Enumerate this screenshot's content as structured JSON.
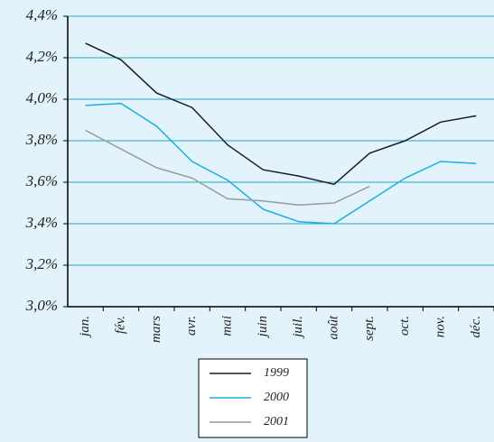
{
  "chart_data": {
    "type": "line",
    "categories": [
      "jan.",
      "fév.",
      "mars",
      "avr.",
      "mai",
      "juin",
      "juil.",
      "août",
      "sept.",
      "oct.",
      "nov.",
      "déc."
    ],
    "series": [
      {
        "name": "1999",
        "color": "#1c1c2a",
        "values": [
          4.27,
          4.19,
          4.03,
          3.96,
          3.78,
          3.66,
          3.63,
          3.59,
          3.74,
          3.8,
          3.89,
          3.92
        ]
      },
      {
        "name": "2000",
        "color": "#18aee6",
        "values": [
          3.97,
          3.98,
          3.87,
          3.7,
          3.61,
          3.47,
          3.41,
          3.4,
          3.51,
          3.62,
          3.7,
          3.69
        ]
      },
      {
        "name": "2001",
        "color": "#9a9a9a",
        "values": [
          3.85,
          3.76,
          3.67,
          3.62,
          3.52,
          3.51,
          3.49,
          3.5,
          3.58,
          null,
          null,
          null
        ]
      }
    ],
    "ylim": [
      3.0,
      4.4
    ],
    "yticks": [
      {
        "value": 3.0,
        "label": "3,0%"
      },
      {
        "value": 3.2,
        "label": "3,2%"
      },
      {
        "value": 3.4,
        "label": "3,4%"
      },
      {
        "value": 3.6,
        "label": "3,6%"
      },
      {
        "value": 3.8,
        "label": "3,8%"
      },
      {
        "value": 4.0,
        "label": "4,0%"
      },
      {
        "value": 4.2,
        "label": "4,2%"
      },
      {
        "value": 4.4,
        "label": "4,4%"
      }
    ],
    "grid": true,
    "legend": "bottom"
  }
}
